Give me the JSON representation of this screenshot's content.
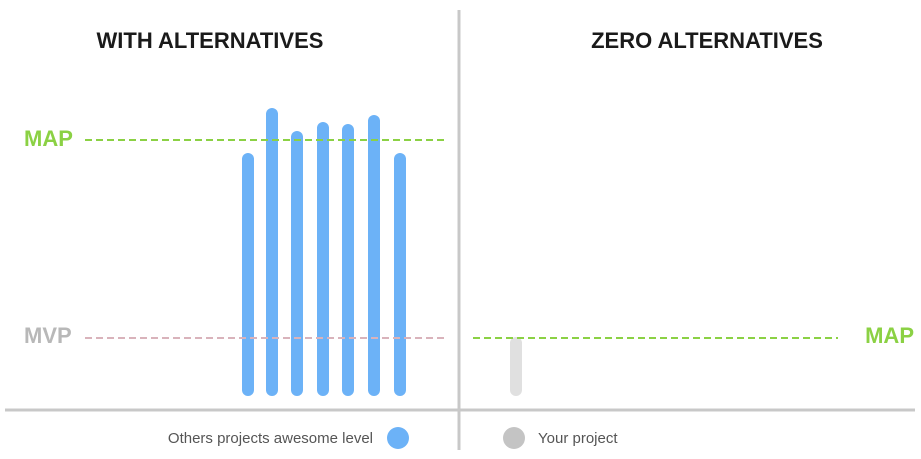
{
  "panels": [
    {
      "title": "WITH ALTERNATIVES",
      "lines": [
        "MAP",
        "MVP"
      ]
    },
    {
      "title": "ZERO ALTERNATIVES",
      "lines": [
        "MAP"
      ]
    }
  ],
  "legend": [
    "Others projects awesome level",
    "Your project"
  ]
}
